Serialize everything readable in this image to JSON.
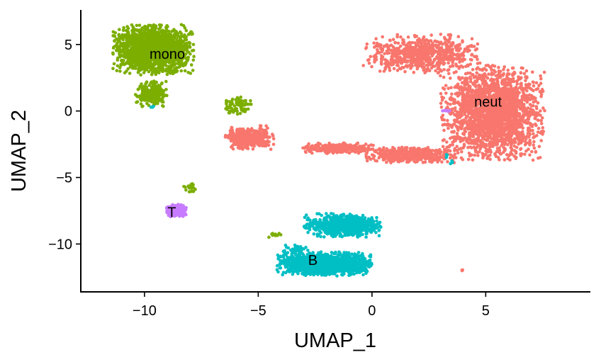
{
  "chart_data": {
    "type": "scatter",
    "title": "",
    "xlabel": "UMAP_1",
    "ylabel": "UMAP_2",
    "xlim": [
      -12.8,
      9.6
    ],
    "ylim": [
      -13.6,
      7.6
    ],
    "x_ticks": [
      -10,
      -5,
      0,
      5
    ],
    "y_ticks": [
      5,
      0,
      -5,
      -10
    ],
    "x_tick_labels": [
      "−10",
      "−5",
      "0",
      "5"
    ],
    "y_tick_labels": [
      "5",
      "0",
      "−5",
      "−10"
    ],
    "grid": false,
    "legend": "none",
    "clusters": [
      {
        "label": "neut",
        "color": "#F8766D",
        "label_position": [
          5.1,
          0.7
        ],
        "approx_extent": {
          "x": [
            -6.7,
            8.5
          ],
          "y": [
            -4.8,
            6.8
          ]
        },
        "regions": [
          {
            "center": [
              5.3,
              -0.1
            ],
            "spread": [
              2.3,
              3.6
            ],
            "points": 2200
          },
          {
            "center": [
              2.2,
              4.3
            ],
            "spread": [
              2.6,
              1.5
            ],
            "points": 700
          },
          {
            "center": [
              1.7,
              -3.3
            ],
            "spread": [
              2.0,
              0.6
            ],
            "points": 500
          },
          {
            "center": [
              -1.5,
              -2.8
            ],
            "spread": [
              1.6,
              0.4
            ],
            "points": 300
          },
          {
            "center": [
              -5.4,
              -2.0
            ],
            "spread": [
              1.1,
              0.9
            ],
            "points": 400
          },
          {
            "center": [
              4.0,
              -12.0
            ],
            "spread": [
              0.1,
              0.1
            ],
            "points": 3
          }
        ]
      },
      {
        "label": "mono",
        "color": "#7CAE00",
        "label_position": [
          -9.0,
          4.3
        ],
        "approx_extent": {
          "x": [
            -11.7,
            -7.2
          ],
          "y": [
            -0.1,
            7.4
          ]
        },
        "regions": [
          {
            "center": [
              -9.6,
              4.6
            ],
            "spread": [
              1.8,
              1.9
            ],
            "points": 1600
          },
          {
            "center": [
              -9.7,
              1.3
            ],
            "spread": [
              0.7,
              1.0
            ],
            "points": 250
          },
          {
            "center": [
              -5.9,
              0.4
            ],
            "spread": [
              0.6,
              0.8
            ],
            "points": 80
          },
          {
            "center": [
              -8.0,
              -5.8
            ],
            "spread": [
              0.3,
              0.4
            ],
            "points": 20
          },
          {
            "center": [
              -4.3,
              -9.3
            ],
            "spread": [
              0.3,
              0.3
            ],
            "points": 10
          }
        ]
      },
      {
        "label": "B",
        "color": "#00BFC4",
        "label_position": [
          -2.6,
          -11.2
        ],
        "approx_extent": {
          "x": [
            -4.8,
            0.1
          ],
          "y": [
            -12.4,
            -7.3
          ]
        },
        "regions": [
          {
            "center": [
              -2.1,
              -11.5
            ],
            "spread": [
              2.1,
              0.9
            ],
            "points": 1300
          },
          {
            "center": [
              -1.3,
              -8.6
            ],
            "spread": [
              1.7,
              0.9
            ],
            "points": 700
          },
          {
            "center": [
              -3.3,
              -10.4
            ],
            "spread": [
              0.6,
              0.4
            ],
            "points": 40
          },
          {
            "center": [
              -9.7,
              0.3
            ],
            "spread": [
              0.1,
              0.1
            ],
            "points": 3
          },
          {
            "center": [
              3.3,
              -3.7
            ],
            "spread": [
              0.7,
              0.5
            ],
            "points": 6
          }
        ]
      },
      {
        "label": "T",
        "color": "#C77CFF",
        "label_position": [
          -8.8,
          -7.6
        ],
        "approx_extent": {
          "x": [
            -9.3,
            -8.0
          ],
          "y": [
            -8.3,
            -6.4
          ]
        },
        "regions": [
          {
            "center": [
              -8.6,
              -7.5
            ],
            "spread": [
              0.45,
              0.5
            ],
            "points": 260
          },
          {
            "center": [
              3.3,
              0.0
            ],
            "spread": [
              0.2,
              0.05
            ],
            "points": 8
          }
        ]
      }
    ]
  }
}
